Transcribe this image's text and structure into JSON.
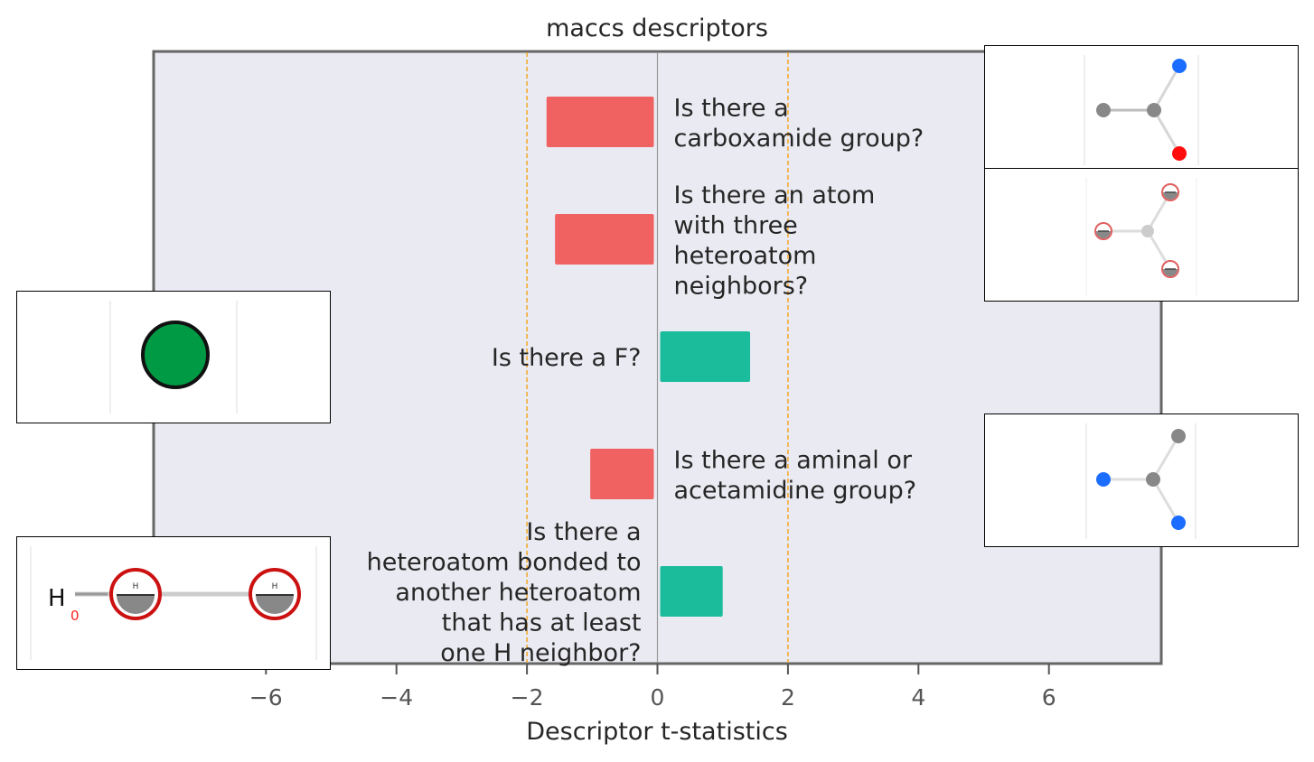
{
  "chart_data": {
    "type": "bar",
    "orientation": "horizontal",
    "title": "maccs descriptors",
    "xlabel": "Descriptor t-statistics",
    "ylabel": "",
    "xlim": [
      -7.8,
      7.8
    ],
    "xticks": [
      -6,
      -4,
      -2,
      0,
      2,
      4,
      6
    ],
    "xtick_labels": [
      "−6",
      "−4",
      "−2",
      "0",
      "2",
      "4",
      "6"
    ],
    "threshold_lines": [
      -2,
      2
    ],
    "grid": false,
    "colors": {
      "negative": "#f06262",
      "positive": "#1abc9c",
      "threshold": "#f5a623",
      "background": "#eaeaf2"
    },
    "categories": [
      [
        "Is there a",
        "carboxamide group?"
      ],
      [
        "Is there an atom",
        "with three",
        "heteroatom",
        "neighbors?"
      ],
      [
        "Is there a F?"
      ],
      [
        "Is there a aminal or",
        "acetamidine group?"
      ],
      [
        "Is there a",
        "heteroatom bonded to",
        "another heteroatom",
        "that has at least",
        "one H neighbor?"
      ]
    ],
    "values": [
      -1.7,
      -1.57,
      1.42,
      -1.03,
      1.0
    ]
  },
  "insets": [
    {
      "name": "carboxamide-structure-image",
      "label_text": ""
    },
    {
      "name": "three-heteroatom-neighbors-structure-image",
      "label_text": ""
    },
    {
      "name": "fluorine-structure-image",
      "label_text": ""
    },
    {
      "name": "aminal-acetamidine-structure-image",
      "label_text": ""
    },
    {
      "name": "heteroatom-bonded-h-structure-image",
      "label_text": "H"
    }
  ]
}
